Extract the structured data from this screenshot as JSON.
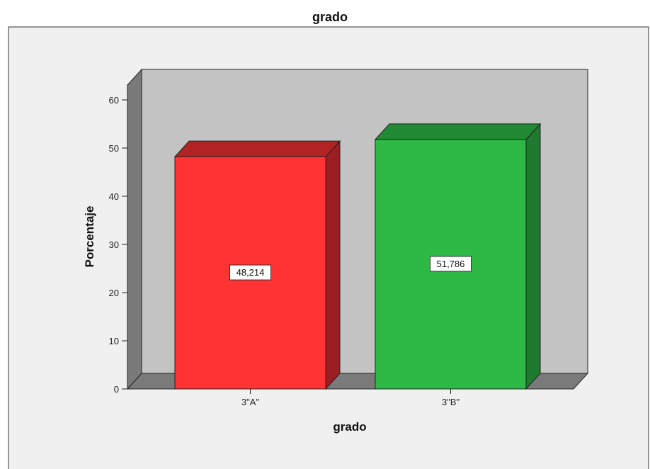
{
  "chart_data": {
    "type": "bar",
    "title": "grado",
    "xlabel": "grado",
    "ylabel": "Porcentaje",
    "categories": [
      "3\"A\"",
      "3\"B\""
    ],
    "values": [
      48.214,
      51.786
    ],
    "value_labels": [
      "48,214",
      "51,786"
    ],
    "ylim": [
      0,
      60
    ],
    "yticks": [
      0,
      10,
      20,
      30,
      40,
      50,
      60
    ],
    "ytick_labels": [
      "0",
      "10",
      "20",
      "30",
      "40",
      "50",
      "60"
    ],
    "three_d": true,
    "grid": false,
    "legend": "none",
    "colors": {
      "bar_front": [
        "#ff3333",
        "#2eb845"
      ],
      "bar_side": [
        "#9b1f22",
        "#1e7a2e"
      ],
      "bar_top": [
        "#b22424",
        "#228a34"
      ],
      "plot_background": "#c3c3c3",
      "floor": "#7a7a7a",
      "left_wall": "#7a7a7a",
      "chart_background": "#f0f0f0"
    }
  }
}
